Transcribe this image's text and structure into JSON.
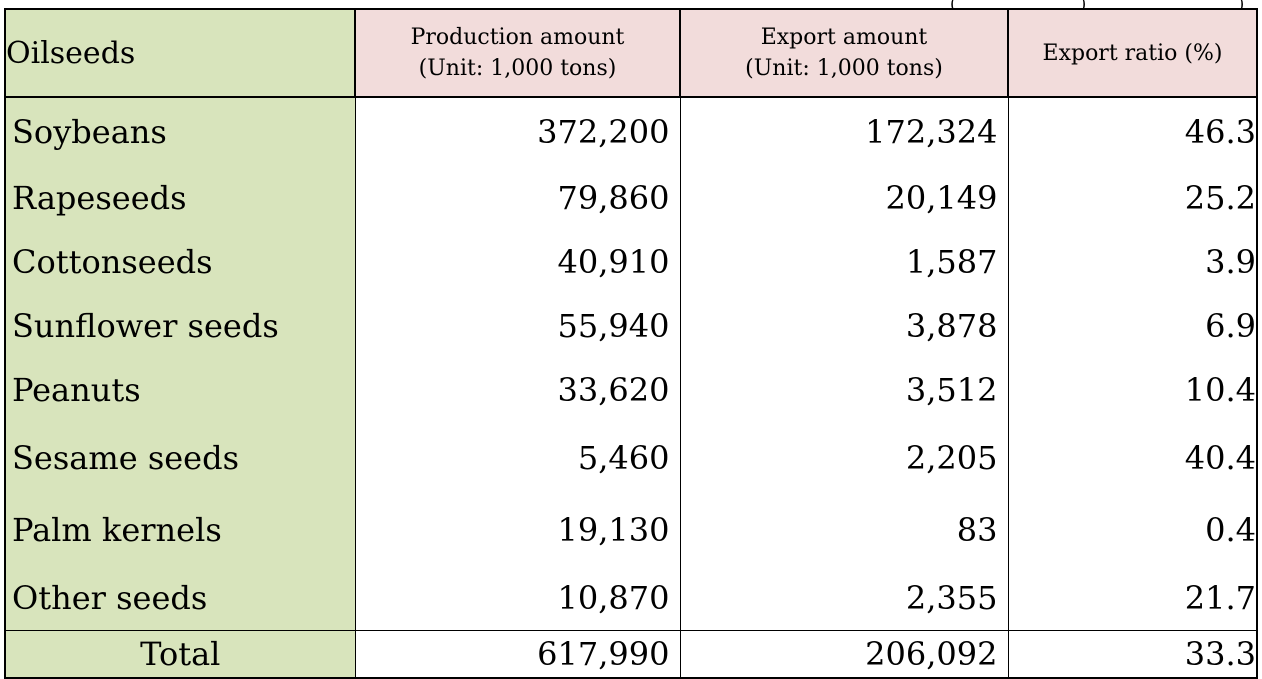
{
  "table": {
    "headers": {
      "name": "Oilseeds",
      "production_line1": "Production amount",
      "production_line2": "(Unit: 1,000 tons)",
      "export_line1": "Export amount",
      "export_line2": "(Unit: 1,000 tons)",
      "ratio": "Export ratio (%)"
    },
    "rows": [
      {
        "name": "Soybeans",
        "production": "372,200",
        "export": "172,324",
        "ratio": "46.3"
      },
      {
        "name": "Rapeseeds",
        "production": "79,860",
        "export": "20,149",
        "ratio": "25.2"
      },
      {
        "name": "Cottonseeds",
        "production": "40,910",
        "export": "1,587",
        "ratio": "3.9"
      },
      {
        "name": "Sunflower seeds",
        "production": "55,940",
        "export": "3,878",
        "ratio": "6.9"
      },
      {
        "name": "Peanuts",
        "production": "33,620",
        "export": "3,512",
        "ratio": "10.4"
      },
      {
        "name": "Sesame seeds",
        "production": "5,460",
        "export": "2,205",
        "ratio": "40.4"
      },
      {
        "name": "Palm kernels",
        "production": "19,130",
        "export": "83",
        "ratio": "0.4"
      },
      {
        "name": "Other seeds",
        "production": "10,870",
        "export": "2,355",
        "ratio": "21.7"
      }
    ],
    "total": {
      "name": "Total",
      "production": "617,990",
      "export": "206,092",
      "ratio": "33.3"
    }
  },
  "colors": {
    "name_column_bg": "#d8e4bc",
    "header_bg": "#f2dcdb"
  }
}
